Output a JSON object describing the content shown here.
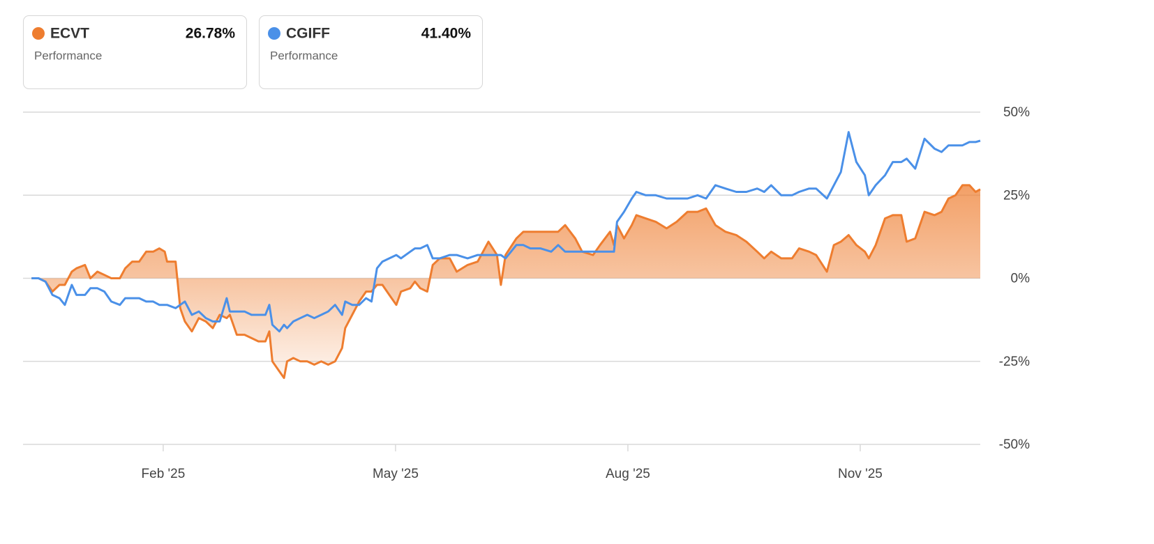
{
  "chart_data": {
    "type": "line",
    "xlim": [
      -0.81,
      11.55
    ],
    "xticks": [
      {
        "value": 1,
        "label": "Feb '25"
      },
      {
        "value": 4,
        "label": "May '25"
      },
      {
        "value": 7,
        "label": "Aug '25"
      },
      {
        "value": 10,
        "label": "Nov '25"
      }
    ],
    "ylim": [
      -50,
      50
    ],
    "yticks": [
      {
        "value": 50,
        "label": "50%"
      },
      {
        "value": 25,
        "label": "25%"
      },
      {
        "value": 0,
        "label": "0%"
      },
      {
        "value": -25,
        "label": "-25%"
      },
      {
        "value": -50,
        "label": "-50%"
      }
    ],
    "grid": true,
    "x": [
      -0.7,
      -0.61,
      -0.52,
      -0.43,
      -0.34,
      -0.27,
      -0.18,
      -0.12,
      -0.01,
      0.06,
      0.15,
      0.24,
      0.33,
      0.44,
      0.51,
      0.6,
      0.69,
      0.78,
      0.87,
      0.95,
      1.02,
      1.05,
      1.16,
      1.22,
      1.28,
      1.37,
      1.46,
      1.55,
      1.64,
      1.73,
      1.82,
      1.86,
      1.95,
      2.05,
      2.14,
      2.23,
      2.32,
      2.37,
      2.41,
      2.5,
      2.56,
      2.6,
      2.68,
      2.77,
      2.86,
      2.95,
      3.04,
      3.13,
      3.22,
      3.31,
      3.35,
      3.44,
      3.53,
      3.62,
      3.69,
      3.76,
      3.83,
      3.92,
      4.01,
      4.07,
      4.19,
      4.25,
      4.32,
      4.41,
      4.48,
      4.57,
      4.7,
      4.79,
      4.93,
      5.06,
      5.2,
      5.31,
      5.36,
      5.42,
      5.56,
      5.65,
      5.74,
      5.87,
      6.01,
      6.1,
      6.19,
      6.32,
      6.41,
      6.55,
      6.64,
      6.77,
      6.82,
      6.86,
      6.95,
      7.05,
      7.11,
      7.23,
      7.36,
      7.5,
      7.63,
      7.77,
      7.9,
      8.01,
      8.13,
      8.26,
      8.4,
      8.53,
      8.67,
      8.76,
      8.85,
      8.98,
      9.12,
      9.21,
      9.34,
      9.43,
      9.57,
      9.66,
      9.75,
      9.85,
      9.95,
      10.06,
      10.11,
      10.2,
      10.32,
      10.42,
      10.53,
      10.6,
      10.71,
      10.83,
      10.96,
      11.05,
      11.14,
      11.23,
      11.32,
      11.41,
      11.49,
      11.55
    ],
    "series": [
      {
        "name": "ECVT",
        "color": "#ee7d2f",
        "fill": true,
        "summary_value": "26.78%",
        "summary_label": "Performance",
        "values": [
          0,
          0,
          -1,
          -4,
          -2,
          -2,
          2,
          3,
          4,
          0,
          2,
          1,
          0,
          0,
          3,
          5,
          5,
          8,
          8,
          9,
          8,
          5,
          5,
          -9,
          -13,
          -16,
          -12,
          -13,
          -15,
          -11,
          -12,
          -11,
          -17,
          -17,
          -18,
          -19,
          -19,
          -16,
          -25,
          -28,
          -30,
          -25,
          -24,
          -25,
          -25,
          -26,
          -25,
          -26,
          -25,
          -21,
          -15,
          -11,
          -7,
          -4,
          -4,
          -2,
          -2,
          -5,
          -8,
          -4,
          -3,
          -1,
          -3,
          -4,
          4,
          6,
          6,
          2,
          4,
          5,
          11,
          7,
          -2,
          7,
          12,
          14,
          14,
          14,
          14,
          14,
          16,
          12,
          8,
          7,
          10,
          14,
          10,
          16,
          12,
          16,
          19,
          18,
          17,
          15,
          17,
          20,
          20,
          21,
          16,
          14,
          13,
          11,
          8,
          6,
          8,
          6,
          6,
          9,
          8,
          7,
          2,
          10,
          11,
          13,
          10,
          8,
          6,
          10,
          18,
          19,
          19,
          11,
          12,
          20,
          19,
          20,
          24,
          25,
          28,
          28,
          26,
          26.78
        ]
      },
      {
        "name": "CGIFF",
        "color": "#4a90e8",
        "fill": false,
        "summary_value": "41.40%",
        "summary_label": "Performance",
        "values": [
          0,
          0,
          -1,
          -5,
          -6,
          -8,
          -2,
          -5,
          -5,
          -3,
          -3,
          -4,
          -7,
          -8,
          -6,
          -6,
          -6,
          -7,
          -7,
          -8,
          -8,
          -8,
          -9,
          -8,
          -7,
          -11,
          -10,
          -12,
          -13,
          -13,
          -6,
          -10,
          -10,
          -10,
          -11,
          -11,
          -11,
          -8,
          -14,
          -16,
          -14,
          -15,
          -13,
          -12,
          -11,
          -12,
          -11,
          -10,
          -8,
          -11,
          -7,
          -8,
          -8,
          -6,
          -7,
          3,
          5,
          6,
          7,
          6,
          8,
          9,
          9,
          10,
          6,
          6,
          7,
          7,
          6,
          7,
          7,
          7,
          7,
          6,
          10,
          10,
          9,
          9,
          8,
          10,
          8,
          8,
          8,
          8,
          8,
          8,
          8,
          17,
          20,
          24,
          26,
          25,
          25,
          24,
          24,
          24,
          25,
          24,
          28,
          27,
          26,
          26,
          27,
          26,
          28,
          25,
          25,
          26,
          27,
          27,
          24,
          28,
          32,
          44,
          35,
          31,
          25,
          28,
          31,
          35,
          35,
          36,
          33,
          42,
          39,
          38,
          40,
          40,
          40,
          41,
          41,
          41.4
        ]
      }
    ]
  }
}
